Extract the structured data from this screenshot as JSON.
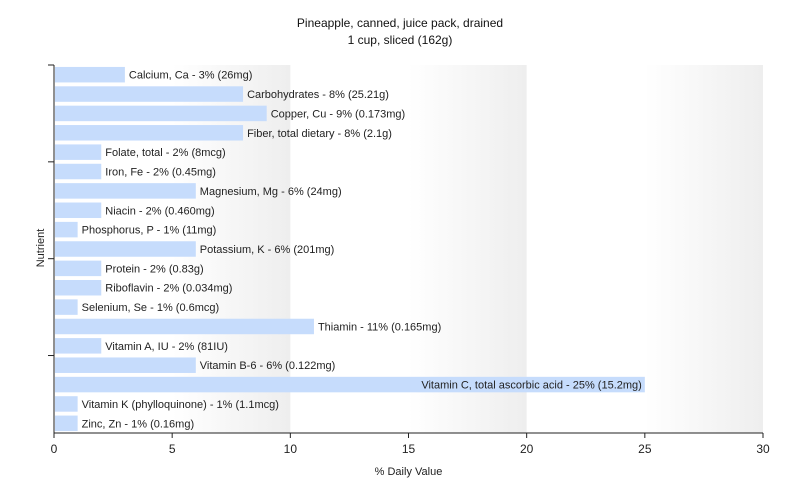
{
  "chart_data": {
    "type": "bar",
    "orientation": "horizontal",
    "title": "Pineapple, canned, juice pack, drained",
    "subtitle": "1 cup, sliced (162g)",
    "xlabel": "% Daily Value",
    "ylabel": "Nutrient",
    "xlim": [
      0,
      30
    ],
    "xticks": [
      0,
      5,
      10,
      15,
      20,
      25,
      30
    ],
    "grid": "vertical bands",
    "bar_color": "#c6dcfc",
    "categories": [
      "Calcium, Ca",
      "Carbohydrates",
      "Copper, Cu",
      "Fiber, total dietary",
      "Folate, total",
      "Iron, Fe",
      "Magnesium, Mg",
      "Niacin",
      "Phosphorus, P",
      "Potassium, K",
      "Protein",
      "Riboflavin",
      "Selenium, Se",
      "Thiamin",
      "Vitamin A, IU",
      "Vitamin B-6",
      "Vitamin C, total ascorbic acid",
      "Vitamin K (phylloquinone)",
      "Zinc, Zn"
    ],
    "values": [
      3,
      8,
      9,
      8,
      2,
      2,
      6,
      2,
      1,
      6,
      2,
      2,
      1,
      11,
      2,
      6,
      25,
      1,
      1
    ],
    "data_labels": [
      "Calcium, Ca - 3% (26mg)",
      "Carbohydrates - 8% (25.21g)",
      "Copper, Cu - 9% (0.173mg)",
      "Fiber, total dietary - 8% (2.1g)",
      "Folate, total - 2% (8mcg)",
      "Iron, Fe - 2% (0.45mg)",
      "Magnesium, Mg - 6% (24mg)",
      "Niacin - 2% (0.460mg)",
      "Phosphorus, P - 1% (11mg)",
      "Potassium, K - 6% (201mg)",
      "Protein - 2% (0.83g)",
      "Riboflavin - 2% (0.034mg)",
      "Selenium, Se - 1% (0.6mcg)",
      "Thiamin - 11% (0.165mg)",
      "Vitamin A, IU - 2% (81IU)",
      "Vitamin B-6 - 6% (0.122mg)",
      "Vitamin C, total ascorbic acid - 25% (15.2mg)",
      "Vitamin K (phylloquinone) - 1% (1.1mcg)",
      "Zinc, Zn - 1% (0.16mg)"
    ]
  }
}
